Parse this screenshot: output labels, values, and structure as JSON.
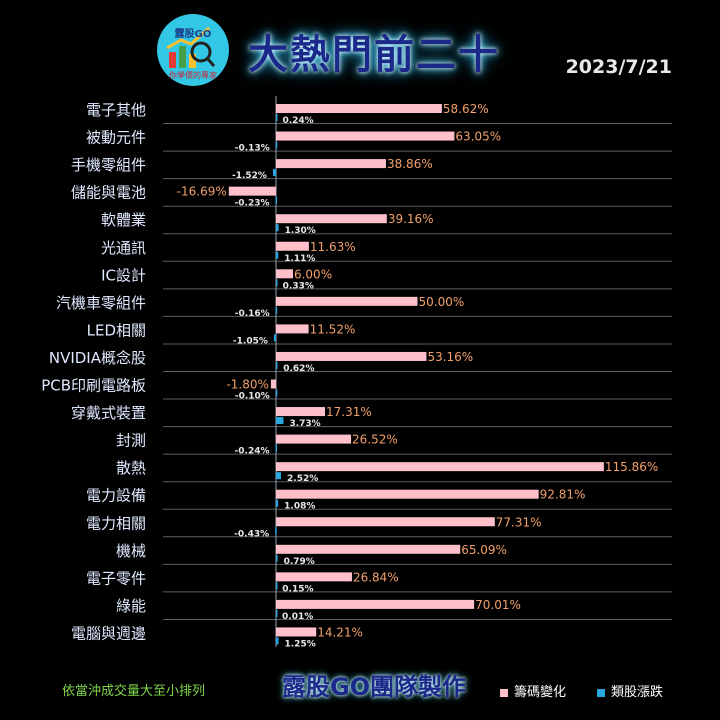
{
  "header": {
    "logo_text": "露股GO",
    "logo_sub": "你學價的專家",
    "title": "大熱門前二十",
    "date": "2023/7/21"
  },
  "footer": {
    "note": "依當沖成交量大至小排列",
    "brand": "露股GO團隊製作",
    "legend": [
      "籌碼變化",
      "類股漲跌"
    ]
  },
  "colors": {
    "chip": "#ffc0cb",
    "sector": "#29a8e0",
    "label_chip": "#f2a06a"
  },
  "chart_data": {
    "type": "bar",
    "orientation": "horizontal",
    "categories": [
      "電子其他",
      "被動元件",
      "手機零組件",
      "儲能與電池",
      "軟體業",
      "光通訊",
      "IC設計",
      "汽機車零組件",
      "LED相關",
      "NVIDIA概念股",
      "PCB印刷電路板",
      "穿戴式裝置",
      "封測",
      "散熱",
      "電力設備",
      "電力相關",
      "機械",
      "電子零件",
      "綠能",
      "電腦與週邊"
    ],
    "series": [
      {
        "name": "籌碼變化",
        "values": [
          58.62,
          63.05,
          38.86,
          -16.69,
          39.16,
          11.63,
          6.0,
          50.0,
          11.52,
          53.16,
          -1.8,
          17.31,
          26.52,
          115.86,
          92.81,
          77.31,
          65.09,
          26.84,
          70.01,
          14.21
        ],
        "labels": [
          "58.62%",
          "63.05%",
          "38.86%",
          "-16.69%",
          "39.16%",
          "11.63%",
          "6.00%",
          "50.00%",
          "11.52%",
          "53.16%",
          "-1.80%",
          "17.31%",
          "26.52%",
          "115.86%",
          "92.81%",
          "77.31%",
          "65.09%",
          "26.84%",
          "70.01%",
          "14.21%"
        ]
      },
      {
        "name": "類股漲跌",
        "values": [
          0.24,
          -0.13,
          -1.52,
          -0.23,
          1.3,
          1.11,
          0.33,
          -0.16,
          -1.05,
          0.62,
          -0.1,
          3.73,
          -0.24,
          2.52,
          1.08,
          -0.43,
          0.79,
          0.15,
          0.01,
          1.25
        ],
        "labels": [
          "0.24%",
          "-0.13%",
          "-1.52%",
          "-0.23%",
          "1.30%",
          "1.11%",
          "0.33%",
          "-0.16%",
          "-1.05%",
          "0.62%",
          "-0.10%",
          "3.73%",
          "-0.24%",
          "2.52%",
          "1.08%",
          "-0.43%",
          "0.79%",
          "0.15%",
          "0.01%",
          "1.25%"
        ]
      }
    ]
  }
}
